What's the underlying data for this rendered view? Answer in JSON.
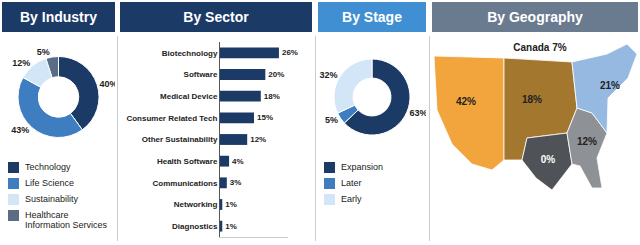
{
  "chart_data": [
    {
      "type": "pie",
      "title": "By Industry",
      "categories": [
        "Technology",
        "Life Science",
        "Sustainability",
        "Healthcare Information Services"
      ],
      "values": [
        40,
        43,
        12,
        5
      ],
      "value_labels": [
        "40%",
        "43%",
        "12%",
        "5%"
      ],
      "colors": [
        "#1c3a66",
        "#3d7dc0",
        "#d3e6f7",
        "#5b6d84"
      ],
      "data_labels": true,
      "legend": "bottom"
    },
    {
      "type": "bar",
      "title": "By Sector",
      "orientation": "horizontal",
      "categories": [
        "Biotechnology",
        "Software",
        "Medical Device",
        "Consumer Related Tech",
        "Other Sustainability",
        "Health Software",
        "Communications",
        "Networking",
        "Diagnostics"
      ],
      "values": [
        26,
        20,
        18,
        15,
        12,
        4,
        3,
        1,
        1
      ],
      "value_labels": [
        "26%",
        "20%",
        "18%",
        "15%",
        "12%",
        "4%",
        "3%",
        "1%",
        "1%"
      ],
      "color": "#1c3a66",
      "xlim": [
        0,
        30
      ],
      "tick_labels": "y",
      "data_labels": true
    },
    {
      "type": "pie",
      "title": "By Stage",
      "categories": [
        "Expansion",
        "Later",
        "Early"
      ],
      "values": [
        63,
        5,
        32
      ],
      "value_labels": [
        "63%",
        "5%",
        "32%"
      ],
      "colors": [
        "#1c3a66",
        "#3d7dc0",
        "#d3e6f7"
      ],
      "data_labels": true,
      "legend": "bottom"
    },
    {
      "type": "map",
      "title": "By Geography",
      "categories": [
        "Canada",
        null,
        null,
        null,
        null,
        null
      ],
      "values": [
        7,
        42,
        18,
        0,
        12,
        21
      ],
      "value_labels": [
        "7%",
        "42%",
        "18%",
        "0%",
        "12%",
        "21%"
      ],
      "data_labels": true
    }
  ]
}
